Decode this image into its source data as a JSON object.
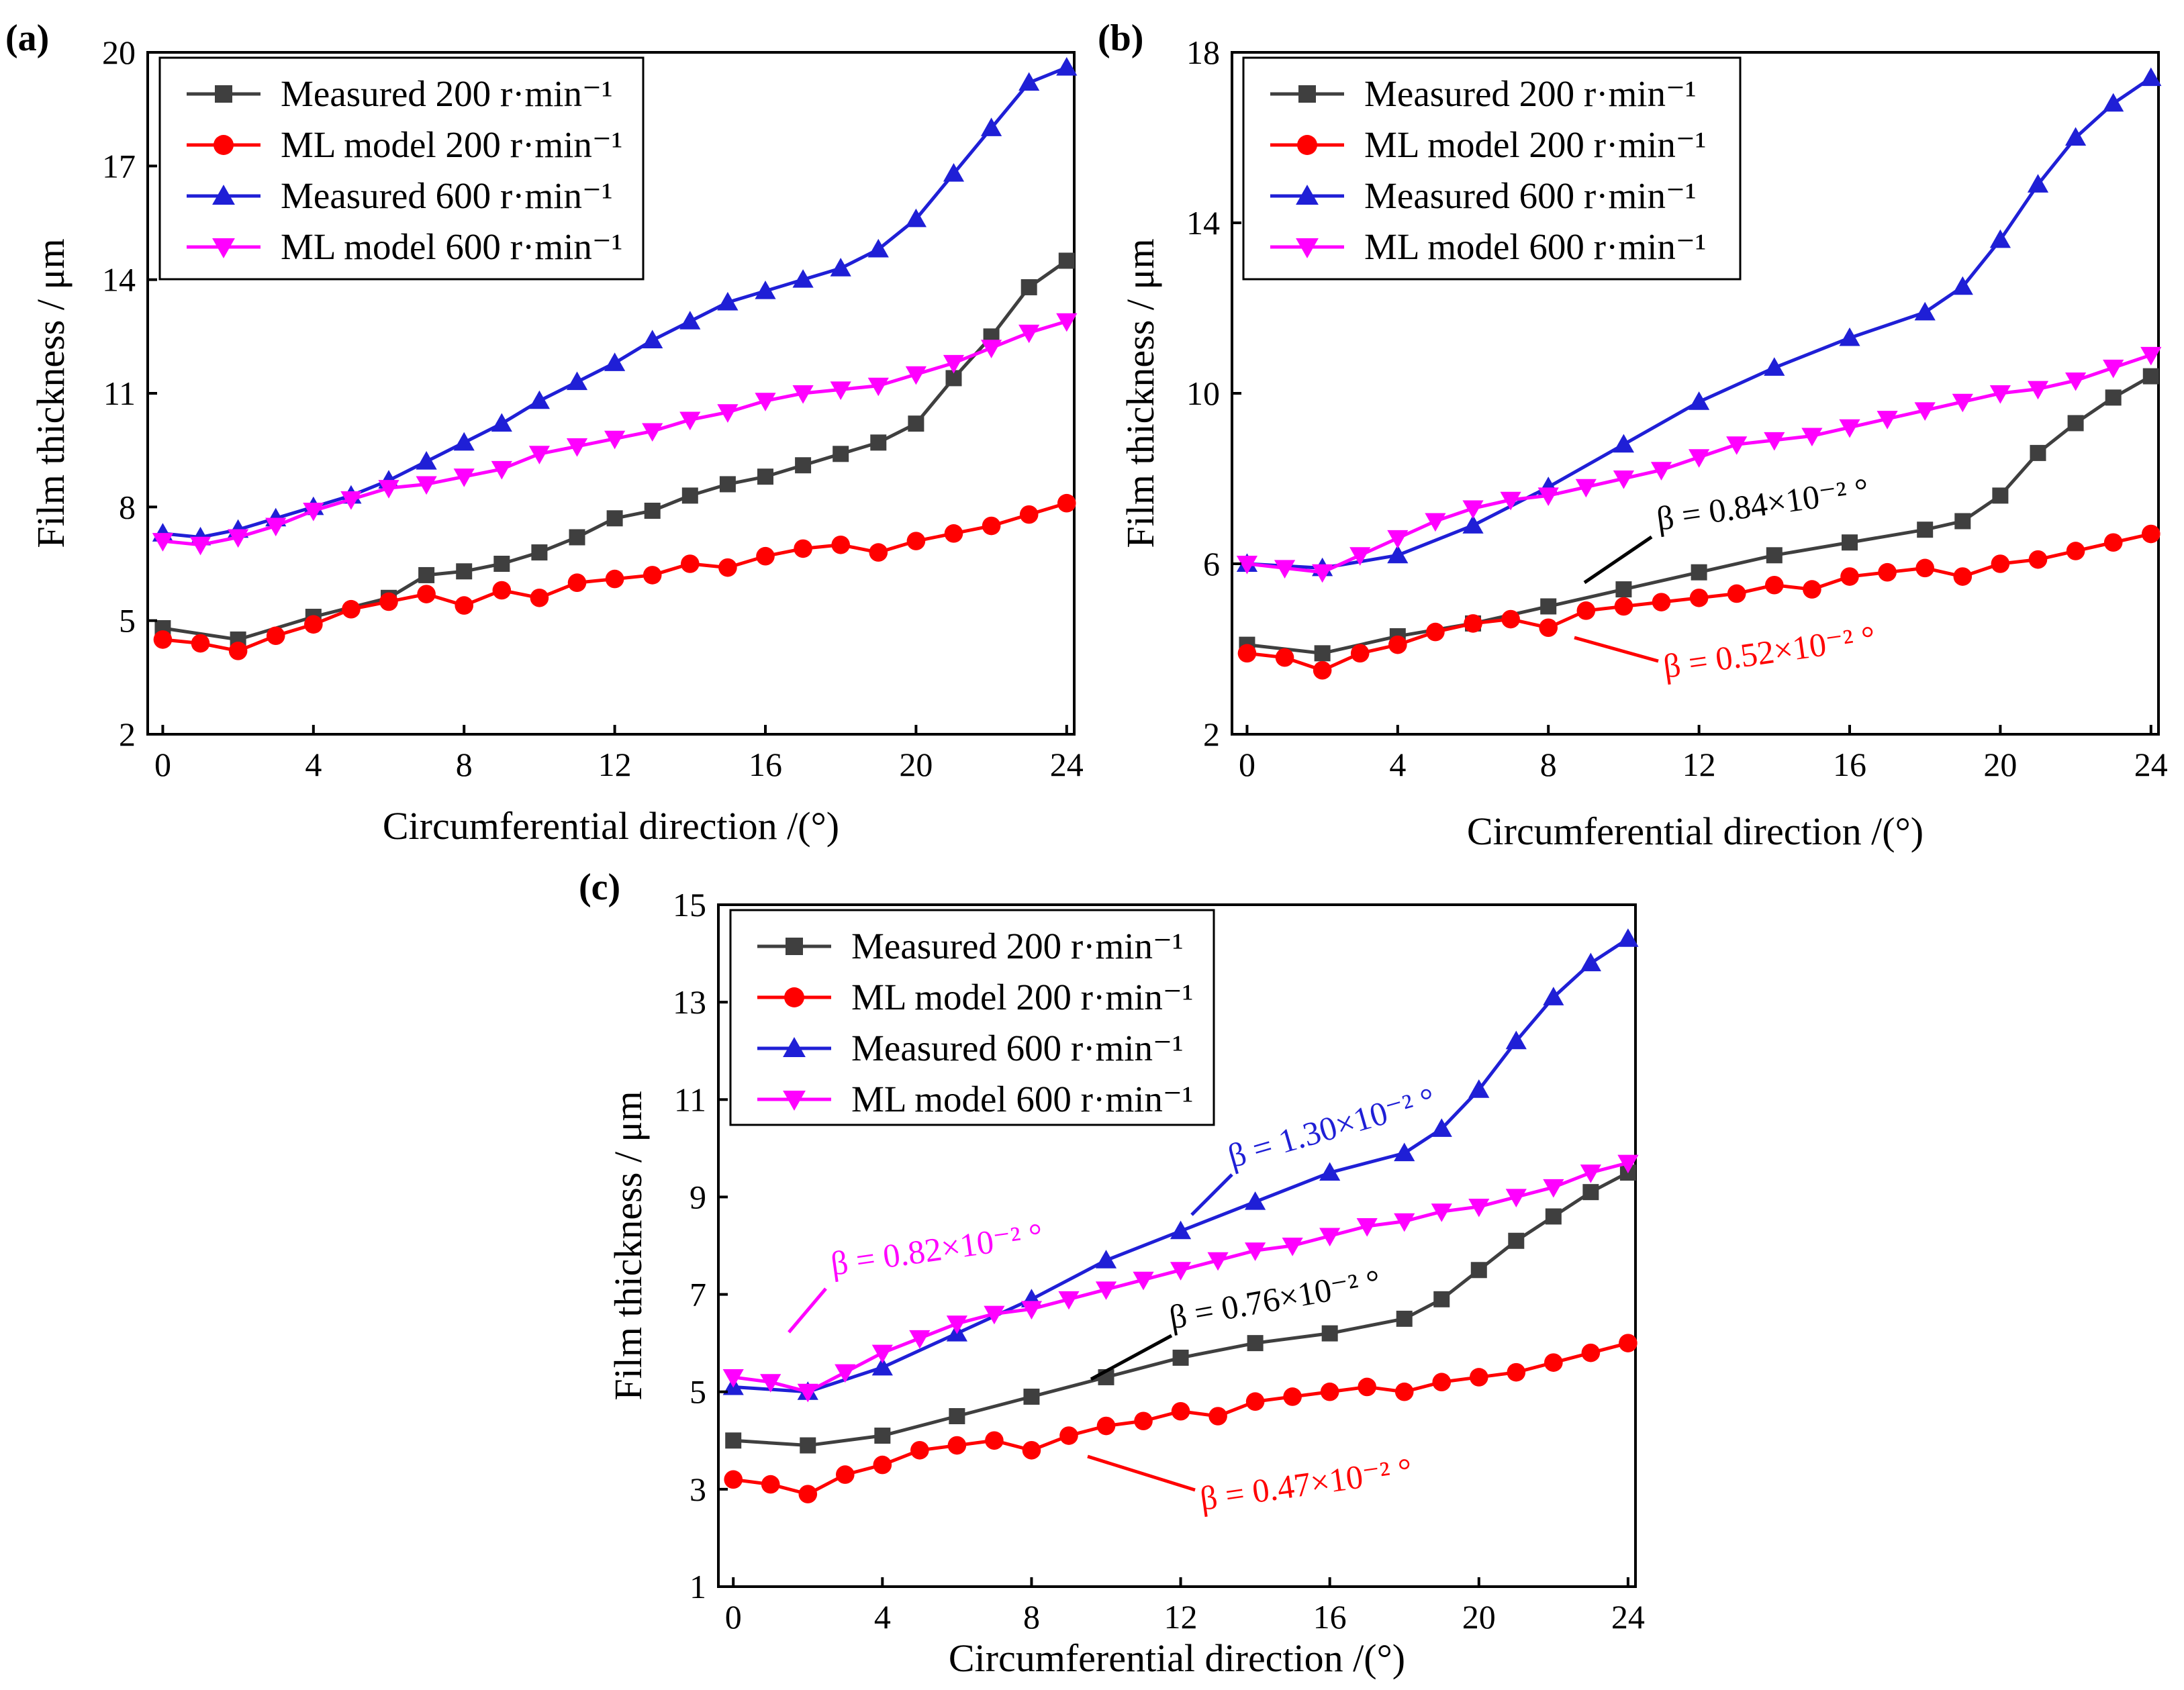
{
  "figure": {
    "panels": [
      {
        "id": "a",
        "label": "(a)"
      },
      {
        "id": "b",
        "label": "(b)"
      },
      {
        "id": "c",
        "label": "(c)"
      }
    ]
  },
  "chart_data": [
    {
      "panel": "(a)",
      "type": "line",
      "xlabel": "Circumferential direction /(°)",
      "ylabel": "Film thickness / μm",
      "xlim": [
        -0.4,
        24.2
      ],
      "ylim": [
        2,
        20
      ],
      "xticks": [
        0,
        4,
        8,
        12,
        16,
        20,
        24
      ],
      "yticks": [
        2,
        5,
        8,
        11,
        14,
        17,
        20
      ],
      "legend_position": "top-left",
      "series": [
        {
          "name": "Measured 200 r·min⁻¹",
          "color": "#3f3f3f",
          "marker": "square",
          "x": [
            0,
            2,
            4,
            6,
            7,
            8,
            9,
            10,
            11,
            12,
            13,
            14,
            15,
            16,
            17,
            18,
            19,
            20,
            21,
            22,
            23,
            24
          ],
          "y": [
            4.8,
            4.5,
            5.1,
            5.6,
            6.2,
            6.3,
            6.5,
            6.8,
            7.2,
            7.7,
            7.9,
            8.3,
            8.6,
            8.8,
            9.1,
            9.4,
            9.7,
            10.2,
            11.4,
            12.5,
            13.8,
            14.5
          ]
        },
        {
          "name": "ML model 200 r·min⁻¹",
          "color": "#ff0000",
          "marker": "circle",
          "x": [
            0,
            1,
            2,
            3,
            4,
            5,
            6,
            7,
            8,
            9,
            10,
            11,
            12,
            13,
            14,
            15,
            16,
            17,
            18,
            19,
            20,
            21,
            22,
            23,
            24
          ],
          "y": [
            4.5,
            4.4,
            4.2,
            4.6,
            4.9,
            5.3,
            5.5,
            5.7,
            5.4,
            5.8,
            5.6,
            6.0,
            6.1,
            6.2,
            6.5,
            6.4,
            6.7,
            6.9,
            7.0,
            6.8,
            7.1,
            7.3,
            7.5,
            7.8,
            8.1
          ]
        },
        {
          "name": "Measured 600 r·min⁻¹",
          "color": "#1f1fd6",
          "marker": "triangle-up",
          "x": [
            0,
            1,
            2,
            3,
            4,
            5,
            6,
            7,
            8,
            9,
            10,
            11,
            12,
            13,
            14,
            15,
            16,
            17,
            18,
            19,
            20,
            21,
            22,
            23,
            24
          ],
          "y": [
            7.3,
            7.2,
            7.4,
            7.7,
            8.0,
            8.3,
            8.7,
            9.2,
            9.7,
            10.2,
            10.8,
            11.3,
            11.8,
            12.4,
            12.9,
            13.4,
            13.7,
            14.0,
            14.3,
            14.8,
            15.6,
            16.8,
            18.0,
            19.2,
            19.6
          ]
        },
        {
          "name": "ML model 600 r·min⁻¹",
          "color": "#ff00ff",
          "marker": "triangle-down",
          "x": [
            0,
            1,
            2,
            3,
            4,
            5,
            6,
            7,
            8,
            9,
            10,
            11,
            12,
            13,
            14,
            15,
            16,
            17,
            18,
            19,
            20,
            21,
            22,
            23,
            24
          ],
          "y": [
            7.1,
            7.0,
            7.2,
            7.5,
            7.9,
            8.2,
            8.5,
            8.6,
            8.8,
            9.0,
            9.4,
            9.6,
            9.8,
            10.0,
            10.3,
            10.5,
            10.8,
            11.0,
            11.1,
            11.2,
            11.5,
            11.8,
            12.2,
            12.6,
            12.9
          ]
        }
      ],
      "annotations": []
    },
    {
      "panel": "(b)",
      "type": "line",
      "xlabel": "Circumferential direction /(°)",
      "ylabel": "Film thickness / μm",
      "xlim": [
        -0.4,
        24.2
      ],
      "ylim": [
        2,
        18
      ],
      "xticks": [
        0,
        4,
        8,
        12,
        16,
        20,
        24
      ],
      "yticks": [
        2,
        6,
        10,
        14,
        18
      ],
      "legend_position": "top-left",
      "series": [
        {
          "name": "Measured 200 r·min⁻¹",
          "color": "#3f3f3f",
          "marker": "square",
          "x": [
            0,
            2,
            4,
            6,
            8,
            10,
            12,
            14,
            16,
            18,
            19,
            20,
            21,
            22,
            23,
            24
          ],
          "y": [
            4.1,
            3.9,
            4.3,
            4.6,
            5.0,
            5.4,
            5.8,
            6.2,
            6.5,
            6.8,
            7.0,
            7.6,
            8.6,
            9.3,
            9.9,
            10.4
          ]
        },
        {
          "name": "ML model 200 r·min⁻¹",
          "color": "#ff0000",
          "marker": "circle",
          "x": [
            0,
            1,
            2,
            3,
            4,
            5,
            6,
            7,
            8,
            9,
            10,
            11,
            12,
            13,
            14,
            15,
            16,
            17,
            18,
            19,
            20,
            21,
            22,
            23,
            24
          ],
          "y": [
            3.9,
            3.8,
            3.5,
            3.9,
            4.1,
            4.4,
            4.6,
            4.7,
            4.5,
            4.9,
            5.0,
            5.1,
            5.2,
            5.3,
            5.5,
            5.4,
            5.7,
            5.8,
            5.9,
            5.7,
            6.0,
            6.1,
            6.3,
            6.5,
            6.7
          ]
        },
        {
          "name": "Measured 600 r·min⁻¹",
          "color": "#1f1fd6",
          "marker": "triangle-up",
          "x": [
            0,
            2,
            4,
            6,
            8,
            10,
            12,
            14,
            16,
            18,
            19,
            20,
            21,
            22,
            23,
            24
          ],
          "y": [
            6.0,
            5.9,
            6.2,
            6.9,
            7.8,
            8.8,
            9.8,
            10.6,
            11.3,
            11.9,
            12.5,
            13.6,
            14.9,
            16.0,
            16.8,
            17.4
          ]
        },
        {
          "name": "ML model 600 r·min⁻¹",
          "color": "#ff00ff",
          "marker": "triangle-down",
          "x": [
            0,
            1,
            2,
            3,
            4,
            5,
            6,
            7,
            8,
            9,
            10,
            11,
            12,
            13,
            14,
            15,
            16,
            17,
            18,
            19,
            20,
            21,
            22,
            23,
            24
          ],
          "y": [
            6.0,
            5.9,
            5.8,
            6.2,
            6.6,
            7.0,
            7.3,
            7.5,
            7.6,
            7.8,
            8.0,
            8.2,
            8.5,
            8.8,
            8.9,
            9.0,
            9.2,
            9.4,
            9.6,
            9.8,
            10.0,
            10.1,
            10.3,
            10.6,
            10.9
          ]
        }
      ],
      "annotations": [
        {
          "text": "β = 0.84×10⁻² °",
          "color": "#000000"
        },
        {
          "text": "β = 0.52×10⁻² °",
          "color": "#ff0000"
        }
      ]
    },
    {
      "panel": "(c)",
      "type": "line",
      "xlabel": "Circumferential direction /(°)",
      "ylabel": "Film thickness / μm",
      "xlim": [
        -0.4,
        24.2
      ],
      "ylim": [
        1,
        15
      ],
      "xticks": [
        0,
        4,
        8,
        12,
        16,
        20,
        24
      ],
      "yticks": [
        1,
        3,
        5,
        7,
        9,
        11,
        13,
        15
      ],
      "legend_position": "top-left",
      "series": [
        {
          "name": "Measured 200 r·min⁻¹",
          "color": "#3f3f3f",
          "marker": "square",
          "x": [
            0,
            2,
            4,
            6,
            8,
            10,
            12,
            14,
            16,
            18,
            19,
            20,
            21,
            22,
            23,
            24
          ],
          "y": [
            4.0,
            3.9,
            4.1,
            4.5,
            4.9,
            5.3,
            5.7,
            6.0,
            6.2,
            6.5,
            6.9,
            7.5,
            8.1,
            8.6,
            9.1,
            9.5
          ]
        },
        {
          "name": "ML model 200 r·min⁻¹",
          "color": "#ff0000",
          "marker": "circle",
          "x": [
            0,
            1,
            2,
            3,
            4,
            5,
            6,
            7,
            8,
            9,
            10,
            11,
            12,
            13,
            14,
            15,
            16,
            17,
            18,
            19,
            20,
            21,
            22,
            23,
            24
          ],
          "y": [
            3.2,
            3.1,
            2.9,
            3.3,
            3.5,
            3.8,
            3.9,
            4.0,
            3.8,
            4.1,
            4.3,
            4.4,
            4.6,
            4.5,
            4.8,
            4.9,
            5.0,
            5.1,
            5.0,
            5.2,
            5.3,
            5.4,
            5.6,
            5.8,
            6.0
          ]
        },
        {
          "name": "Measured 600 r·min⁻¹",
          "color": "#1f1fd6",
          "marker": "triangle-up",
          "x": [
            0,
            2,
            4,
            6,
            8,
            10,
            12,
            14,
            16,
            18,
            19,
            20,
            21,
            22,
            23,
            24
          ],
          "y": [
            5.1,
            5.0,
            5.5,
            6.2,
            6.9,
            7.7,
            8.3,
            8.9,
            9.5,
            9.9,
            10.4,
            11.2,
            12.2,
            13.1,
            13.8,
            14.3
          ]
        },
        {
          "name": "ML model 600 r·min⁻¹",
          "color": "#ff00ff",
          "marker": "triangle-down",
          "x": [
            0,
            1,
            2,
            3,
            4,
            5,
            6,
            7,
            8,
            9,
            10,
            11,
            12,
            13,
            14,
            15,
            16,
            17,
            18,
            19,
            20,
            21,
            22,
            23,
            24
          ],
          "y": [
            5.3,
            5.2,
            5.0,
            5.4,
            5.8,
            6.1,
            6.4,
            6.6,
            6.7,
            6.9,
            7.1,
            7.3,
            7.5,
            7.7,
            7.9,
            8.0,
            8.2,
            8.4,
            8.5,
            8.7,
            8.8,
            9.0,
            9.2,
            9.5,
            9.7
          ]
        }
      ],
      "annotations": [
        {
          "text": "β = 1.30×10⁻² °",
          "color": "#1f1fd6"
        },
        {
          "text": "β = 0.82×10⁻² °",
          "color": "#ff00ff"
        },
        {
          "text": "β = 0.76×10⁻² °",
          "color": "#000000"
        },
        {
          "text": "β = 0.47×10⁻² °",
          "color": "#ff0000"
        }
      ]
    }
  ]
}
